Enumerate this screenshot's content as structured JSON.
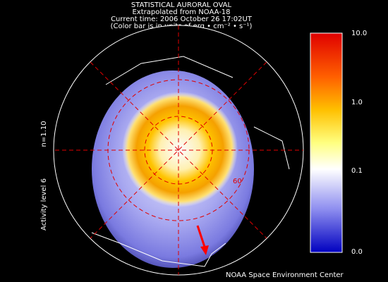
{
  "header": {
    "lines": [
      "STATISTICAL AURORAL OVAL",
      "Extrapolated from NOAA-18",
      "Current time: 2006 October 26 17:02UT",
      "(Color bar is in units of erg • cm⁻² • s⁻¹)"
    ]
  },
  "map": {
    "side_labels": [
      "n=1.10",
      "Activity level 6"
    ],
    "latitude_label": "60"
  },
  "colorbar": {
    "labels": [
      "10.0",
      "1.0",
      "0.1",
      "0.0"
    ]
  },
  "footer": {
    "credit": "NOAA Space Environment Center"
  }
}
